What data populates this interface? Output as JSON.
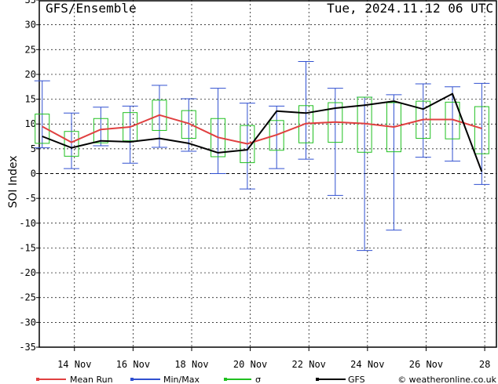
{
  "header": {
    "left": "GFS/Ensemble",
    "right": "Tue, 2024.11.12  06 UTC"
  },
  "legend": {
    "mean": "Mean Run",
    "minmax": "Min/Max",
    "sigma": "σ",
    "gfs": "GFS",
    "credit": "© weatheronline.co.uk"
  },
  "colors": {
    "mean": "#e04040",
    "minmax": "#3050d0",
    "sigma": "#20c020",
    "gfs": "#000000"
  },
  "chart_data": {
    "type": "line",
    "ylabel": "SOI Index",
    "ylim": [
      -35,
      35
    ],
    "yticks": [
      -35,
      -30,
      -25,
      -20,
      -15,
      -10,
      -5,
      0,
      5,
      10,
      15,
      20,
      25,
      30,
      35
    ],
    "xlim": [
      12.8,
      28.4
    ],
    "xticks": [
      {
        "x": 14,
        "label": "14 Nov"
      },
      {
        "x": 16,
        "label": "16 Nov"
      },
      {
        "x": 18,
        "label": "18 Nov"
      },
      {
        "x": 20,
        "label": "20 Nov"
      },
      {
        "x": 22,
        "label": "22 Nov"
      },
      {
        "x": 24,
        "label": "24 Nov"
      },
      {
        "x": 26,
        "label": "26 Nov"
      },
      {
        "x": 28,
        "label": "28"
      }
    ],
    "grid": true,
    "legend_position": "bottom",
    "x": [
      12.9,
      13.9,
      14.9,
      15.9,
      16.9,
      17.9,
      18.9,
      19.9,
      20.9,
      21.9,
      22.9,
      23.9,
      24.9,
      25.9,
      26.9,
      27.9,
      28.3
    ],
    "series": [
      {
        "name": "Mean Run",
        "values": [
          9.5,
          6.3,
          8.9,
          9.4,
          11.8,
          10.1,
          7.3,
          6.0,
          7.8,
          10.1,
          10.4,
          10.1,
          9.4,
          10.9,
          10.9,
          9.1,
          null
        ]
      },
      {
        "name": "GFS",
        "values": [
          7.5,
          5.2,
          6.6,
          6.4,
          7.1,
          6.1,
          4.2,
          4.8,
          12.6,
          12.2,
          13.2,
          13.8,
          14.6,
          13.0,
          16.1,
          0.4,
          null
        ]
      }
    ],
    "minmax": [
      {
        "x": 12.9,
        "min": 5.2,
        "max": 18.7
      },
      {
        "x": 13.9,
        "min": 1.0,
        "max": 12.2
      },
      {
        "x": 14.9,
        "min": 5.6,
        "max": 13.4
      },
      {
        "x": 15.9,
        "min": 2.1,
        "max": 13.6
      },
      {
        "x": 16.9,
        "min": 5.3,
        "max": 17.8
      },
      {
        "x": 17.9,
        "min": 4.5,
        "max": 15.1
      },
      {
        "x": 18.9,
        "min": 0.0,
        "max": 17.2
      },
      {
        "x": 19.9,
        "min": -3.1,
        "max": 14.2
      },
      {
        "x": 20.9,
        "min": 1.0,
        "max": 13.6
      },
      {
        "x": 21.9,
        "min": 2.9,
        "max": 22.6
      },
      {
        "x": 22.9,
        "min": -4.4,
        "max": 17.2
      },
      {
        "x": 23.9,
        "min": -15.5,
        "max": 15.4
      },
      {
        "x": 24.9,
        "min": -11.4,
        "max": 15.9
      },
      {
        "x": 25.9,
        "min": 3.3,
        "max": 18.1
      },
      {
        "x": 26.9,
        "min": 2.5,
        "max": 17.5
      },
      {
        "x": 27.9,
        "min": -2.2,
        "max": 18.2
      }
    ],
    "sigma": [
      {
        "x": 12.9,
        "low": 6.1,
        "high": 12.0
      },
      {
        "x": 13.9,
        "low": 3.5,
        "high": 8.5
      },
      {
        "x": 14.9,
        "low": 6.2,
        "high": 11.1
      },
      {
        "x": 15.9,
        "low": 6.6,
        "high": 12.3
      },
      {
        "x": 16.9,
        "low": 8.7,
        "high": 14.8
      },
      {
        "x": 17.9,
        "low": 7.1,
        "high": 12.7
      },
      {
        "x": 18.9,
        "low": 3.4,
        "high": 11.1
      },
      {
        "x": 19.9,
        "low": 2.2,
        "high": 9.7
      },
      {
        "x": 20.9,
        "low": 4.7,
        "high": 10.7
      },
      {
        "x": 21.9,
        "low": 6.2,
        "high": 13.7
      },
      {
        "x": 22.9,
        "low": 6.3,
        "high": 14.3
      },
      {
        "x": 23.9,
        "low": 4.3,
        "high": 15.4
      },
      {
        "x": 24.9,
        "low": 4.4,
        "high": 14.3
      },
      {
        "x": 25.9,
        "low": 7.1,
        "high": 14.6
      },
      {
        "x": 26.9,
        "low": 7.0,
        "high": 14.4
      },
      {
        "x": 27.9,
        "low": 4.0,
        "high": 13.5
      }
    ]
  }
}
